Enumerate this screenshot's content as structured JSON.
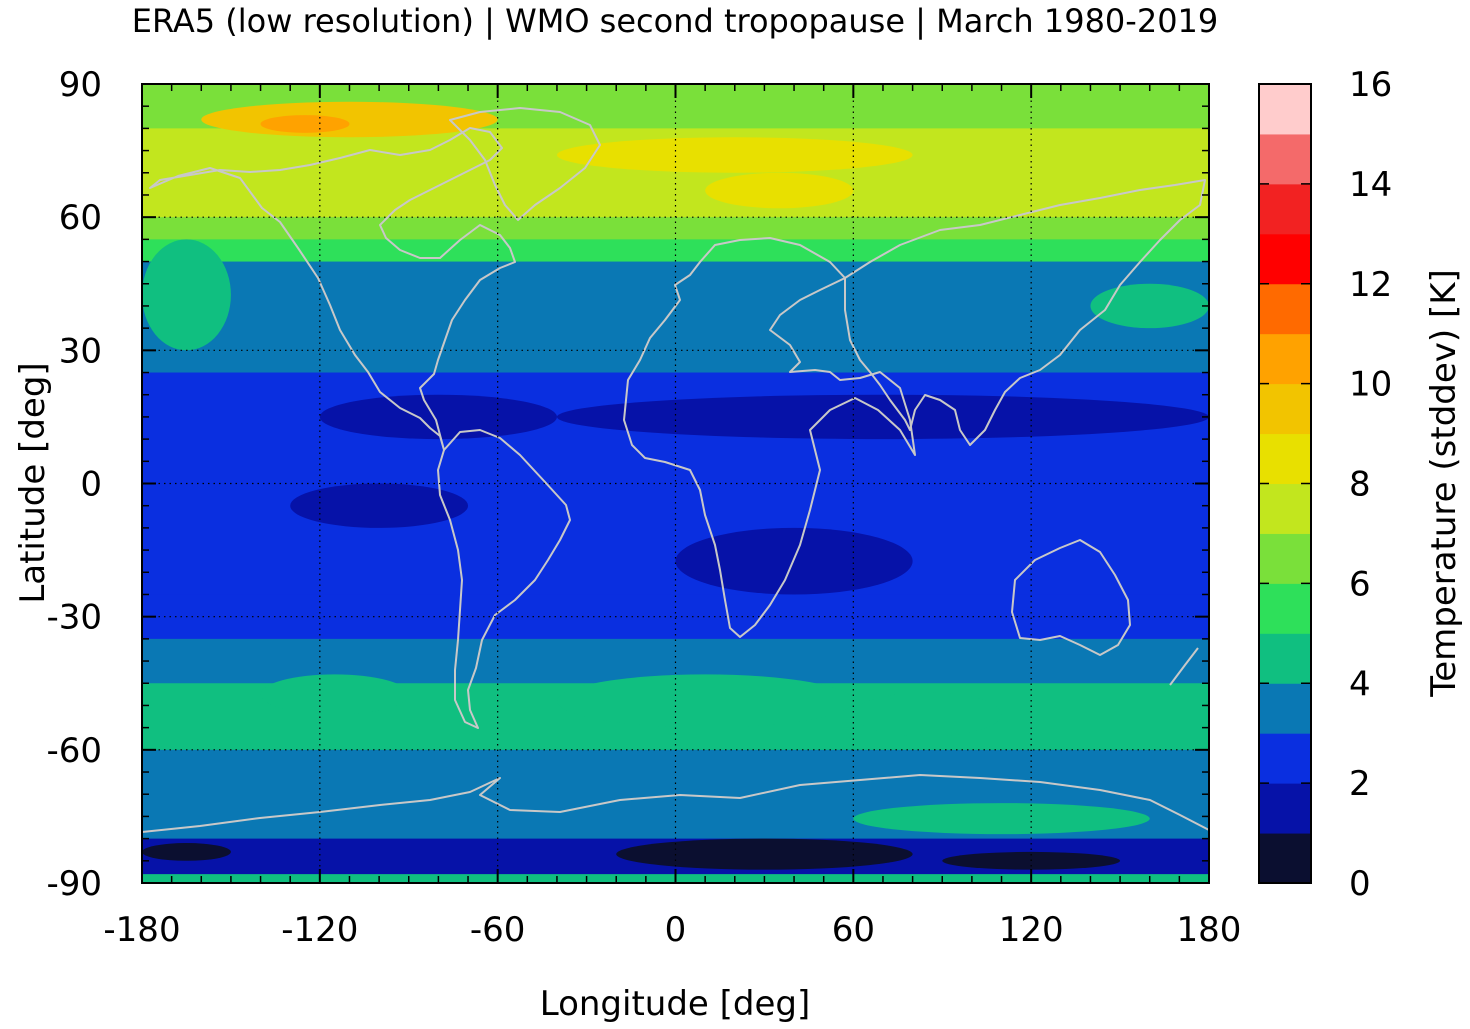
{
  "chart_data": {
    "type": "heatmap",
    "title": "ERA5 (low resolution) | WMO second tropopause | March 1980-2019",
    "xlabel": "Longitude [deg]",
    "ylabel": "Latitude [deg]",
    "colorbar_label": "Temperature (stddev) [K]",
    "xlim": [
      -180,
      180
    ],
    "ylim": [
      -90,
      90
    ],
    "x_ticks": [
      "-180",
      "-120",
      "-60",
      "0",
      "60",
      "120",
      "180"
    ],
    "y_ticks": [
      "90",
      "60",
      "30",
      "0",
      "-30",
      "-60",
      "-90"
    ],
    "x_tick_values": [
      -180,
      -120,
      -60,
      0,
      60,
      120,
      180
    ],
    "y_tick_values": [
      90,
      60,
      30,
      0,
      -30,
      -60,
      -90
    ],
    "colorbar_ticks": [
      "0",
      "2",
      "4",
      "6",
      "8",
      "10",
      "12",
      "14",
      "16"
    ],
    "colorbar_tick_values": [
      0,
      2,
      4,
      6,
      8,
      10,
      12,
      14,
      16
    ],
    "colorbar_range": [
      0,
      16
    ],
    "grid": true,
    "coastlines_color": "#c8c8c8",
    "levels": [
      {
        "range": [
          0,
          1
        ],
        "color": "#0b0f30"
      },
      {
        "range": [
          1,
          2
        ],
        "color": "#0612a8"
      },
      {
        "range": [
          2,
          3
        ],
        "color": "#0a2fe0"
      },
      {
        "range": [
          3,
          4
        ],
        "color": "#0a78b4"
      },
      {
        "range": [
          4,
          5
        ],
        "color": "#10bf80"
      },
      {
        "range": [
          5,
          6
        ],
        "color": "#2ee05a"
      },
      {
        "range": [
          6,
          7
        ],
        "color": "#7ae03a"
      },
      {
        "range": [
          7,
          8
        ],
        "color": "#c2e61e"
      },
      {
        "range": [
          8,
          9
        ],
        "color": "#e8e000"
      },
      {
        "range": [
          9,
          10
        ],
        "color": "#f2c400"
      },
      {
        "range": [
          10,
          11
        ],
        "color": "#ffa200"
      },
      {
        "range": [
          11,
          12
        ],
        "color": "#ff6a00"
      },
      {
        "range": [
          12,
          13
        ],
        "color": "#ff0000"
      },
      {
        "range": [
          13,
          14
        ],
        "color": "#f22222"
      },
      {
        "range": [
          14,
          15
        ],
        "color": "#f46a6a"
      },
      {
        "range": [
          15,
          16
        ],
        "color": "#ffcccc"
      }
    ],
    "zonal_bands": [
      {
        "lat": [
          80,
          90
        ],
        "value": 6.4
      },
      {
        "lat": [
          60,
          80
        ],
        "value": 7.6
      },
      {
        "lat": [
          55,
          60
        ],
        "value": 6.5
      },
      {
        "lat": [
          50,
          55
        ],
        "value": 5.5
      },
      {
        "lat": [
          35,
          50
        ],
        "value": 3.5
      },
      {
        "lat": [
          25,
          35
        ],
        "value": 3.3
      },
      {
        "lat": [
          -25,
          25
        ],
        "value": 2.5
      },
      {
        "lat": [
          -35,
          -25
        ],
        "value": 2.7
      },
      {
        "lat": [
          -45,
          -35
        ],
        "value": 3.5
      },
      {
        "lat": [
          -60,
          -45
        ],
        "value": 4.5
      },
      {
        "lat": [
          -70,
          -60
        ],
        "value": 3.6
      },
      {
        "lat": [
          -80,
          -70
        ],
        "value": 3.4
      },
      {
        "lat": [
          -88,
          -80
        ],
        "value": 1.5
      },
      {
        "lat": [
          -90,
          -88
        ],
        "value": 4.4
      }
    ],
    "regional_features": [
      {
        "lon": [
          -160,
          -60
        ],
        "lat": [
          78,
          86
        ],
        "value": 9.5
      },
      {
        "lon": [
          -140,
          -110
        ],
        "lat": [
          79,
          83
        ],
        "value": 10.5
      },
      {
        "lon": [
          -40,
          80
        ],
        "lat": [
          70,
          78
        ],
        "value": 8.4
      },
      {
        "lon": [
          10,
          60
        ],
        "lat": [
          62,
          70
        ],
        "value": 8.6
      },
      {
        "lon": [
          -180,
          -150
        ],
        "lat": [
          30,
          55
        ],
        "value": 4.5
      },
      {
        "lon": [
          140,
          180
        ],
        "lat": [
          35,
          45
        ],
        "value": 4.5
      },
      {
        "lon": [
          -40,
          60
        ],
        "lat": [
          -55,
          -43
        ],
        "value": 4.6
      },
      {
        "lon": [
          60,
          110
        ],
        "lat": [
          -57,
          -47
        ],
        "value": 4.5
      },
      {
        "lon": [
          -140,
          -90
        ],
        "lat": [
          -52,
          -43
        ],
        "value": 4.6
      },
      {
        "lon": [
          -120,
          -40
        ],
        "lat": [
          20,
          10
        ],
        "value": 1.5
      },
      {
        "lon": [
          -40,
          180
        ],
        "lat": [
          20,
          10
        ],
        "value": 1.5
      },
      {
        "lon": [
          -130,
          -70
        ],
        "lat": [
          0,
          -10
        ],
        "value": 1.5
      },
      {
        "lon": [
          0,
          80
        ],
        "lat": [
          -10,
          -25
        ],
        "value": 1.5
      },
      {
        "lon": [
          -20,
          80
        ],
        "lat": [
          -80,
          -87
        ],
        "value": 0.5
      },
      {
        "lon": [
          90,
          150
        ],
        "lat": [
          -83,
          -87
        ],
        "value": 0.5
      },
      {
        "lon": [
          -180,
          -150
        ],
        "lat": [
          -81,
          -85
        ],
        "value": 0.5
      },
      {
        "lon": [
          60,
          160
        ],
        "lat": [
          -72,
          -79
        ],
        "value": 4.5
      }
    ]
  }
}
